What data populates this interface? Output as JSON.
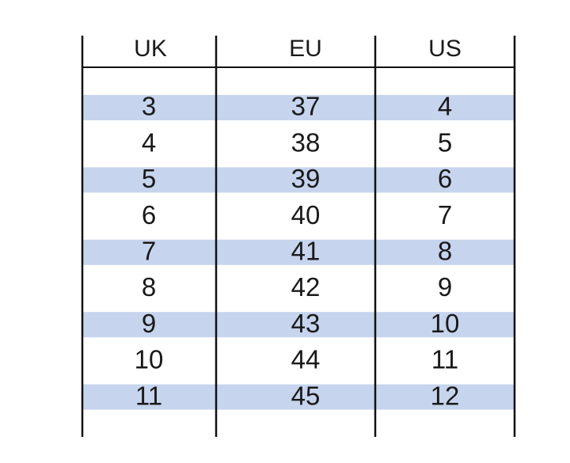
{
  "table": {
    "header": [
      "UK",
      "EU",
      "US"
    ],
    "rows": [
      [
        3,
        37,
        4
      ],
      [
        4,
        38,
        5
      ],
      [
        5,
        39,
        6
      ],
      [
        6,
        40,
        7
      ],
      [
        7,
        41,
        8
      ],
      [
        8,
        42,
        9
      ],
      [
        9,
        43,
        10
      ],
      [
        10,
        44,
        11
      ],
      [
        11,
        45,
        12
      ]
    ]
  }
}
